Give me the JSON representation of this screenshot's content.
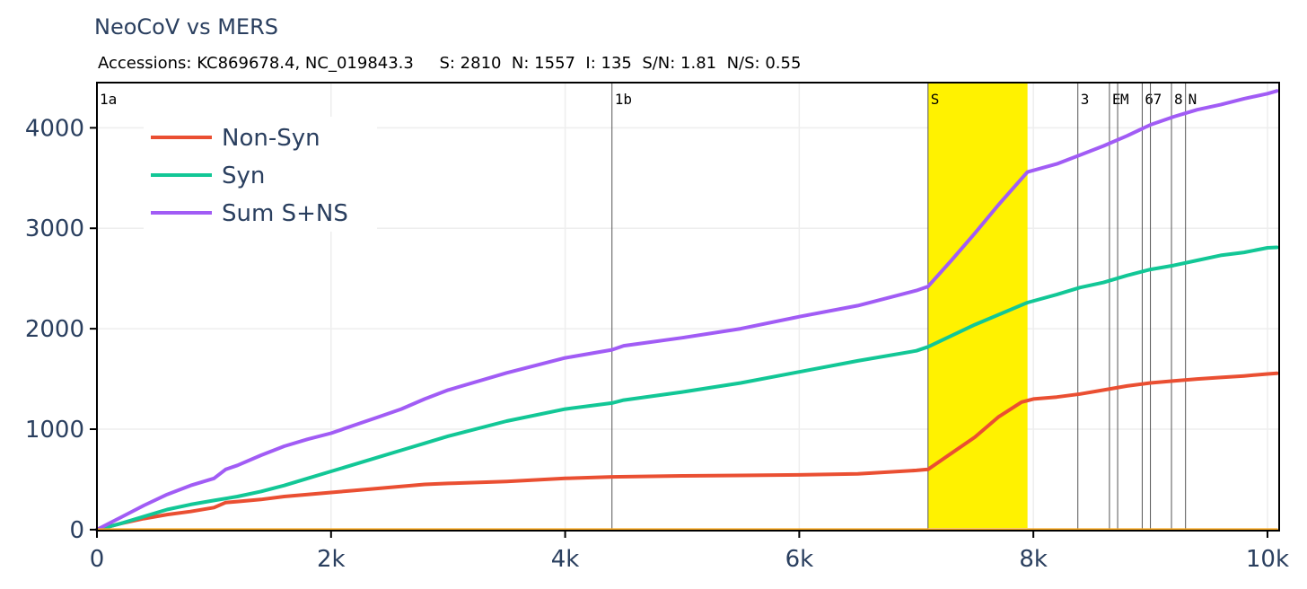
{
  "title": "NeoCoV vs MERS",
  "subtitle": "Accessions: KC869678.4, NC_019843.3     S: 2810  N: 1557  I: 135  S/N: 1.81  N/S: 0.55",
  "colors": {
    "nonsyn": "#ea4f32",
    "syn": "#12c796",
    "sum": "#a15cf5",
    "baseline": "#f5a623",
    "highlight": "#fff200",
    "region_line": "#555555",
    "grid": "#eeeeee",
    "axis_text": "#2a3f5f"
  },
  "chart_data": {
    "type": "line",
    "title": "NeoCoV vs MERS",
    "xlabel": "",
    "ylabel": "",
    "xlim": [
      0,
      10100
    ],
    "ylim": [
      -10,
      4450
    ],
    "grid": true,
    "legend_position": "top-left",
    "x_ticks": [
      0,
      2000,
      4000,
      6000,
      8000,
      10000
    ],
    "x_tick_labels": [
      "0",
      "2k",
      "4k",
      "6k",
      "8k",
      "10k"
    ],
    "y_ticks": [
      0,
      1000,
      2000,
      3000,
      4000
    ],
    "y_tick_labels": [
      "0",
      "1000",
      "2000",
      "3000",
      "4000"
    ],
    "highlight": {
      "label": "S",
      "x0": 7100,
      "x1": 7950
    },
    "regions": [
      {
        "label": "1a",
        "x": 0
      },
      {
        "label": "1b",
        "x": 4400
      },
      {
        "label": "S",
        "x": 7100
      },
      {
        "label": "3",
        "x": 8380
      },
      {
        "label": "E",
        "x": 8650
      },
      {
        "label": "M",
        "x": 8720
      },
      {
        "label": "6",
        "x": 8930
      },
      {
        "label": "7",
        "x": 9000
      },
      {
        "label": "8",
        "x": 9180
      },
      {
        "label": "N",
        "x": 9300
      }
    ],
    "series": [
      {
        "name": "Non-Syn",
        "x": [
          0,
          200,
          400,
          600,
          800,
          1000,
          1100,
          1200,
          1400,
          1600,
          1800,
          2000,
          2200,
          2400,
          2600,
          2800,
          3000,
          3500,
          4000,
          4400,
          5000,
          5500,
          6000,
          6500,
          7000,
          7100,
          7300,
          7500,
          7700,
          7900,
          8000,
          8200,
          8400,
          8600,
          8800,
          9000,
          9200,
          9400,
          9600,
          9800,
          10000,
          10080
        ],
        "values": [
          0,
          60,
          110,
          150,
          180,
          220,
          270,
          280,
          300,
          330,
          350,
          370,
          390,
          410,
          430,
          450,
          460,
          480,
          510,
          525,
          535,
          540,
          545,
          555,
          590,
          600,
          760,
          920,
          1120,
          1270,
          1300,
          1320,
          1350,
          1390,
          1430,
          1460,
          1480,
          1500,
          1515,
          1530,
          1550,
          1557
        ]
      },
      {
        "name": "Syn",
        "x": [
          0,
          200,
          400,
          600,
          800,
          1000,
          1200,
          1400,
          1600,
          1800,
          2000,
          2200,
          2400,
          2600,
          2800,
          3000,
          3500,
          4000,
          4400,
          4500,
          5000,
          5500,
          6000,
          6500,
          7000,
          7100,
          7500,
          7950,
          8200,
          8400,
          8600,
          8800,
          9000,
          9200,
          9400,
          9600,
          9800,
          10000,
          10080
        ],
        "values": [
          0,
          60,
          130,
          200,
          250,
          290,
          330,
          380,
          440,
          510,
          580,
          650,
          720,
          790,
          860,
          930,
          1080,
          1200,
          1260,
          1290,
          1370,
          1460,
          1570,
          1680,
          1780,
          1820,
          2040,
          2260,
          2340,
          2410,
          2460,
          2530,
          2590,
          2630,
          2680,
          2730,
          2760,
          2805,
          2810
        ]
      },
      {
        "name": "Sum S+NS",
        "x": [
          0,
          200,
          400,
          600,
          800,
          1000,
          1100,
          1200,
          1400,
          1600,
          1800,
          2000,
          2200,
          2400,
          2600,
          2800,
          3000,
          3500,
          4000,
          4400,
          4500,
          5000,
          5500,
          6000,
          6500,
          7000,
          7100,
          7300,
          7500,
          7700,
          7950,
          8200,
          8400,
          8600,
          8800,
          9000,
          9200,
          9400,
          9600,
          9800,
          10000,
          10080
        ],
        "values": [
          0,
          120,
          240,
          350,
          440,
          510,
          600,
          640,
          740,
          830,
          900,
          960,
          1040,
          1120,
          1200,
          1300,
          1390,
          1560,
          1710,
          1790,
          1830,
          1910,
          2000,
          2120,
          2230,
          2380,
          2420,
          2680,
          2950,
          3230,
          3560,
          3640,
          3730,
          3820,
          3920,
          4030,
          4110,
          4180,
          4230,
          4290,
          4340,
          4367
        ]
      },
      {
        "name": "",
        "x": [
          0,
          10080
        ],
        "values": [
          0,
          0
        ]
      }
    ]
  }
}
